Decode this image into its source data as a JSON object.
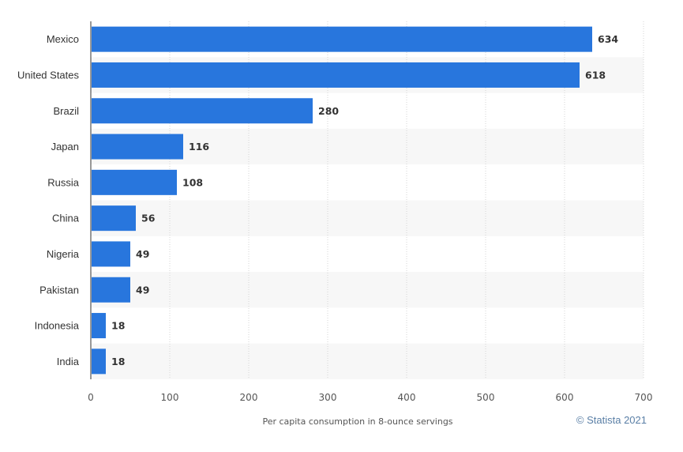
{
  "chart_data": {
    "type": "bar",
    "orientation": "horizontal",
    "categories": [
      "Mexico",
      "United States",
      "Brazil",
      "Japan",
      "Russia",
      "China",
      "Nigeria",
      "Pakistan",
      "Indonesia",
      "India"
    ],
    "values": [
      634,
      618,
      280,
      116,
      108,
      56,
      49,
      49,
      18,
      18
    ],
    "value_labels": [
      "634",
      "618",
      "280",
      "116",
      "108",
      "56",
      "49",
      "49",
      "18",
      "18"
    ],
    "xticks": [
      0,
      100,
      200,
      300,
      400,
      500,
      600,
      700
    ],
    "xtick_labels": [
      "0",
      "100",
      "200",
      "300",
      "400",
      "500",
      "600",
      "700"
    ],
    "xlim": [
      0,
      700
    ],
    "xlabel": "Per capita consumption in 8-ounce servings",
    "ylabel": "",
    "grid": "vertical",
    "bar_color": "#2876dd",
    "credit": "© Statista 2021"
  }
}
